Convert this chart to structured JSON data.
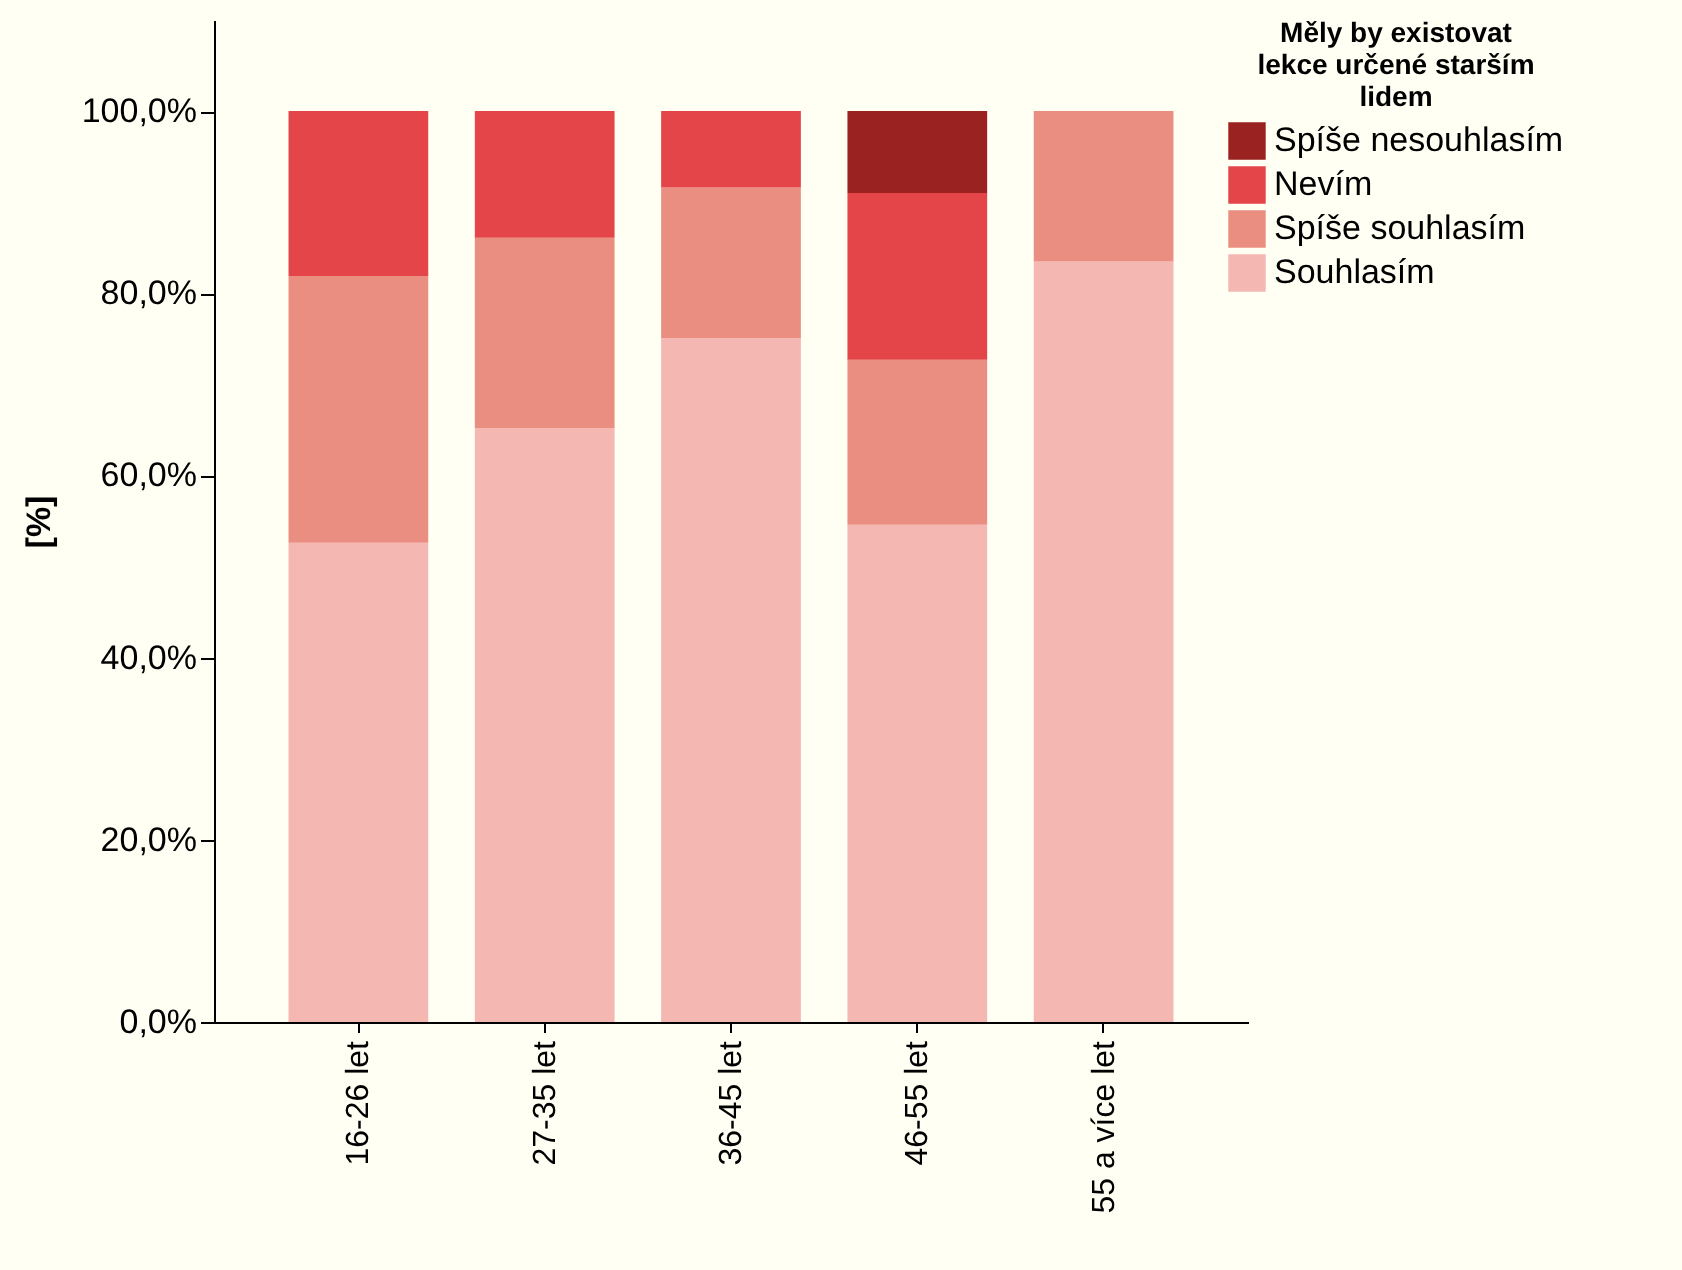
{
  "chart_data": {
    "type": "bar",
    "stacked": true,
    "ylabel": "[%]",
    "legend_title": "Měly by existovat lekce určené starším lidem",
    "legend": "top right",
    "grid": false,
    "categories": [
      "16-26 let",
      "27-35 let",
      "36-45 let",
      "46-55 let",
      "55 a více let"
    ],
    "ylim": [
      0,
      110
    ],
    "yticks": [
      {
        "value": 0,
        "label": "0,0%"
      },
      {
        "value": 20,
        "label": "20,0%"
      },
      {
        "value": 40,
        "label": "40,0%"
      },
      {
        "value": 60,
        "label": "60,0%"
      },
      {
        "value": 80,
        "label": "80,0%"
      },
      {
        "value": 100,
        "label": "100,0%"
      }
    ],
    "series": [
      {
        "name": "Souhlasím",
        "color": "#f5b7b2",
        "values": [
          52.6,
          65.2,
          75.1,
          54.6,
          83.5
        ]
      },
      {
        "name": "Spíše souhlasím",
        "color": "#ea8e82",
        "values": [
          29.3,
          20.9,
          16.5,
          18.1,
          16.5
        ]
      },
      {
        "name": "Nevím",
        "color": "#e34548",
        "values": [
          18.1,
          13.9,
          8.4,
          18.3,
          null
        ]
      },
      {
        "name": "Spíše nesouhlasím",
        "color": "#9a2220",
        "values": [
          null,
          null,
          null,
          9.0,
          null
        ]
      }
    ]
  }
}
